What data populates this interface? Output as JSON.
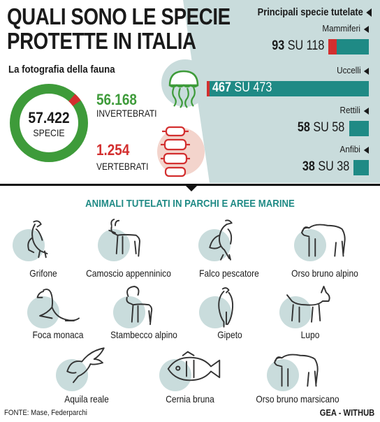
{
  "header": {
    "title_line1": "QUALI SONO LE SPECIE",
    "title_line2": "PROTETTE IN ITALIA",
    "subtitle": "La fotografia della fauna"
  },
  "summary": {
    "total_value": "57.422",
    "total_label": "SPECIE",
    "invertebrates_value": "56.168",
    "invertebrates_label": "INVERTEBRATI",
    "vertebrates_value": "1.254",
    "vertebrates_label": "VERTEBRATI",
    "colors": {
      "invertebrates": "#3e9b3a",
      "vertebrates": "#d32f2f"
    }
  },
  "protected_panel": {
    "title": "Principali specie tutelate",
    "su": "SU",
    "colors": {
      "protected": "#1f8a85",
      "unprotected": "#d32f2f",
      "panel_bg": "#c9dcdc"
    }
  },
  "chart_data": {
    "type": "bar",
    "title": "Principali specie tutelate",
    "categories": [
      "Mammiferi",
      "Uccelli",
      "Rettili",
      "Anfibi"
    ],
    "series": [
      {
        "values": [
          93,
          467,
          58,
          38
        ]
      },
      {
        "values": [
          118,
          473,
          58,
          38
        ]
      }
    ]
  },
  "section": {
    "title": "ANIMALI TUTELATI IN PARCHI E AREE MARINE",
    "animals": [
      {
        "name": "Grifone",
        "icon": "vulture-icon"
      },
      {
        "name": "Camoscio appenninico",
        "icon": "chamois-icon"
      },
      {
        "name": "Falco pescatore",
        "icon": "osprey-icon"
      },
      {
        "name": "Orso bruno alpino",
        "icon": "bear-icon"
      },
      {
        "name": "Foca monaca",
        "icon": "seal-icon"
      },
      {
        "name": "Stambecco alpino",
        "icon": "ibex-icon"
      },
      {
        "name": "Gipeto",
        "icon": "bearded-vulture-icon"
      },
      {
        "name": "Lupo",
        "icon": "wolf-icon"
      },
      {
        "name": "Aquila reale",
        "icon": "eagle-icon"
      },
      {
        "name": "Cernia bruna",
        "icon": "grouper-icon"
      },
      {
        "name": "Orso bruno marsicano",
        "icon": "bear-icon"
      }
    ]
  },
  "footer": {
    "source": "FONTE: Mase, Federparchi",
    "credit": "GEA - WITHUB"
  }
}
